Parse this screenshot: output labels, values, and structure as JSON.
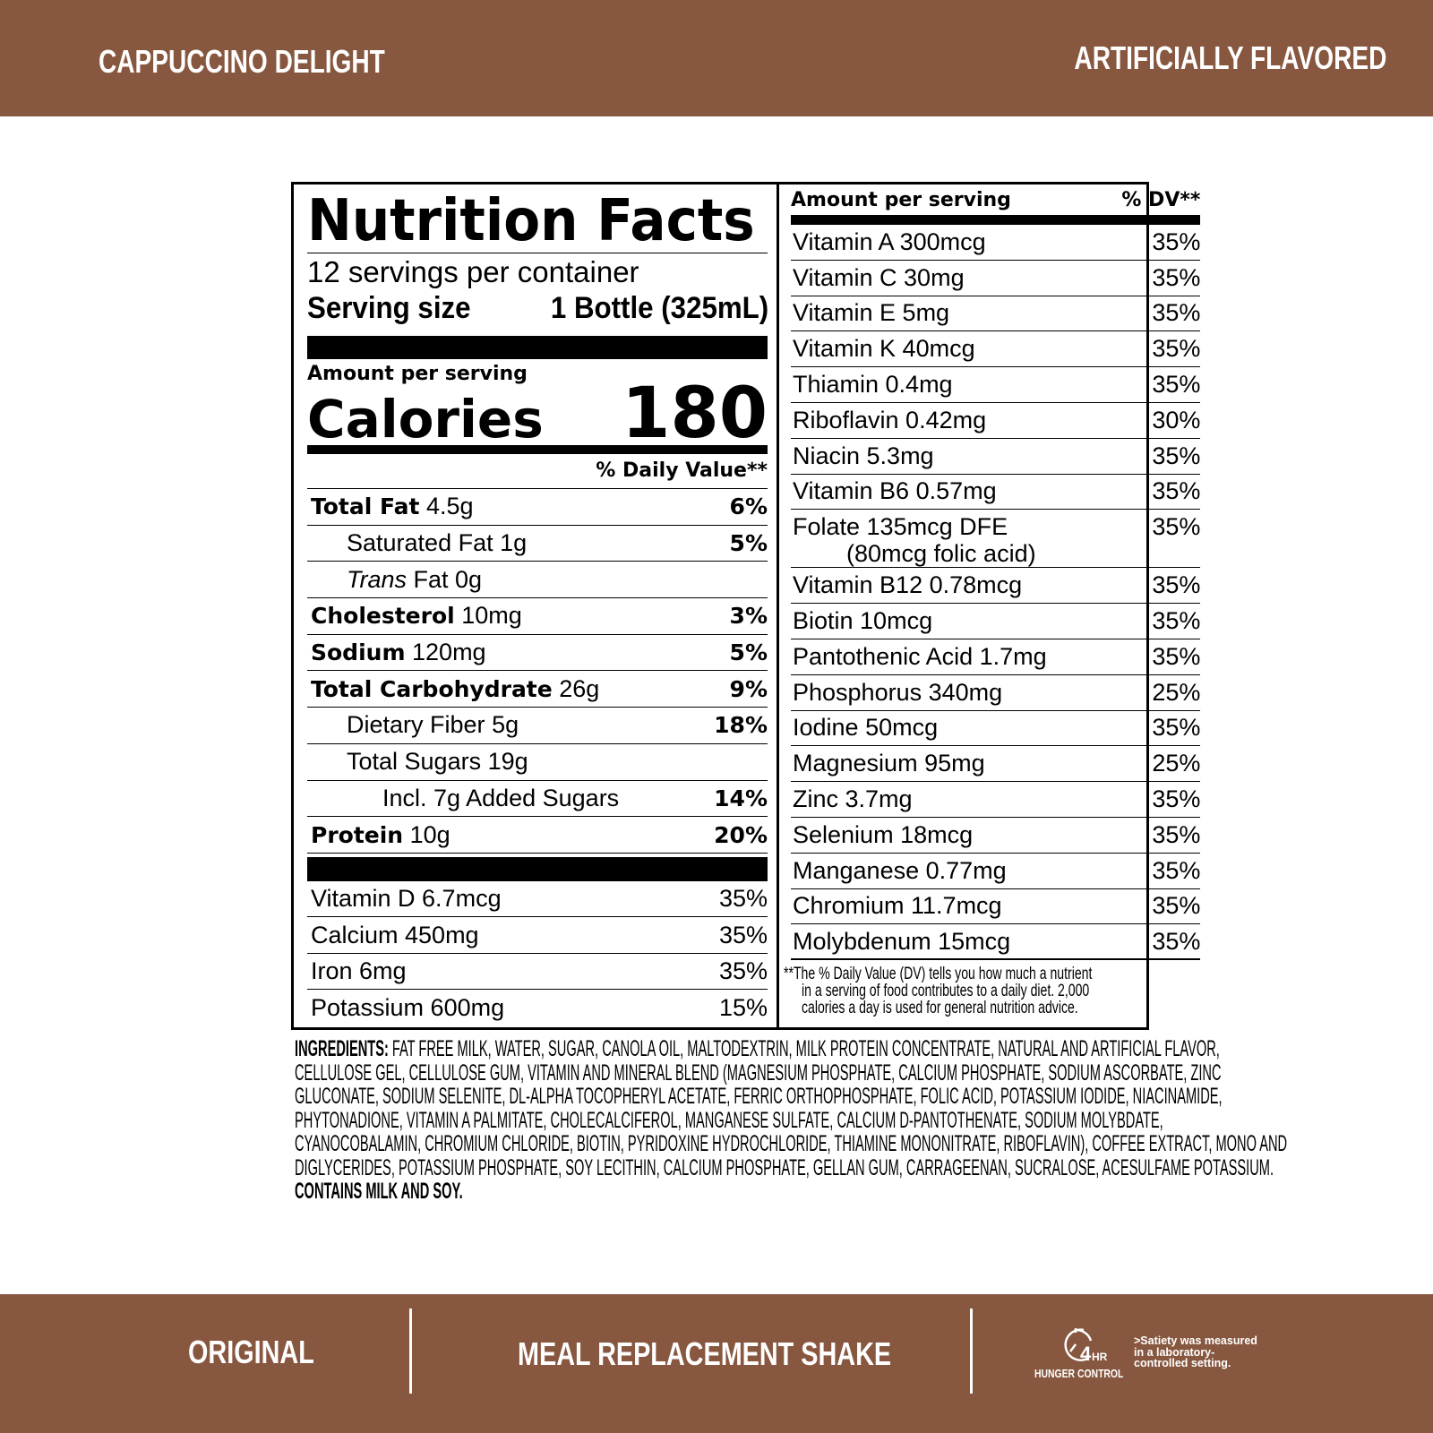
{
  "header": {
    "flavor": "CAPPUCCINO DELIGHT",
    "flavor_note": "ARTIFICIALLY FLAVORED"
  },
  "label": {
    "title": "Nutrition Facts",
    "servings": "12 servings per container",
    "serving_size_label": "Serving size",
    "serving_size_value": "1 Bottle (325mL)",
    "amount_per_serving": "Amount per serving",
    "calories_label": "Calories",
    "calories_value": "180",
    "dv_header": "% Daily Value**",
    "nutrients": [
      {
        "name": "Total Fat",
        "amount": "4.5g",
        "dv": "6%",
        "bold": true,
        "indent": 0
      },
      {
        "name": "Saturated Fat",
        "amount": "1g",
        "dv": "5%",
        "bold": false,
        "indent": 1
      },
      {
        "name": "Trans",
        "amount": "Fat 0g",
        "dv": "",
        "bold": false,
        "indent": 1,
        "italic": true
      },
      {
        "name": "Cholesterol",
        "amount": "10mg",
        "dv": "3%",
        "bold": true,
        "indent": 0
      },
      {
        "name": "Sodium",
        "amount": "120mg",
        "dv": "5%",
        "bold": true,
        "indent": 0
      },
      {
        "name": "Total Carbohydrate",
        "amount": "26g",
        "dv": "9%",
        "bold": true,
        "indent": 0
      },
      {
        "name": "Dietary Fiber",
        "amount": "5g",
        "dv": "18%",
        "bold": false,
        "indent": 1
      },
      {
        "name": "Total Sugars",
        "amount": "19g",
        "dv": "",
        "bold": false,
        "indent": 1
      },
      {
        "name": "Incl. 7g Added Sugars",
        "amount": "",
        "dv": "14%",
        "bold": false,
        "indent": 2
      },
      {
        "name": "Protein",
        "amount": "10g",
        "dv": "20%",
        "bold": true,
        "indent": 0
      }
    ],
    "vitamins_left": [
      {
        "name": "Vitamin D 6.7mcg",
        "dv": "35%"
      },
      {
        "name": "Calcium 450mg",
        "dv": "35%"
      },
      {
        "name": "Iron 6mg",
        "dv": "35%"
      },
      {
        "name": "Potassium 600mg",
        "dv": "15%"
      }
    ],
    "right_header": {
      "amount": "Amount per serving",
      "dv": "% DV**"
    },
    "vitamins_right": [
      {
        "name": "Vitamin A 300mcg",
        "dv": "35%"
      },
      {
        "name": "Vitamin C 30mg",
        "dv": "35%"
      },
      {
        "name": "Vitamin E 5mg",
        "dv": "35%"
      },
      {
        "name": "Vitamin K 40mcg",
        "dv": "35%"
      },
      {
        "name": "Thiamin 0.4mg",
        "dv": "35%"
      },
      {
        "name": "Riboflavin 0.42mg",
        "dv": "30%"
      },
      {
        "name": "Niacin 5.3mg",
        "dv": "35%"
      },
      {
        "name": "Vitamin B6 0.57mg",
        "dv": "35%"
      },
      {
        "name": "Folate 135mcg DFE",
        "sub": "(80mcg folic acid)",
        "dv": "35%"
      },
      {
        "name": "Vitamin B12 0.78mcg",
        "dv": "35%"
      },
      {
        "name": "Biotin 10mcg",
        "dv": "35%"
      },
      {
        "name": "Pantothenic Acid 1.7mg",
        "dv": "35%"
      },
      {
        "name": "Phosphorus 340mg",
        "dv": "25%"
      },
      {
        "name": "Iodine 50mcg",
        "dv": "35%"
      },
      {
        "name": "Magnesium 95mg",
        "dv": "25%"
      },
      {
        "name": "Zinc 3.7mg",
        "dv": "35%"
      },
      {
        "name": "Selenium 18mcg",
        "dv": "35%"
      },
      {
        "name": "Manganese 0.77mg",
        "dv": "35%"
      },
      {
        "name": "Chromium 11.7mcg",
        "dv": "35%"
      },
      {
        "name": "Molybdenum 15mcg",
        "dv": "35%"
      }
    ],
    "footnote": [
      "**The % Daily Value (DV) tells you how much a nutrient",
      "in a serving of food contributes to a daily diet. 2,000",
      "calories a day is used for general nutrition advice."
    ]
  },
  "ingredients": {
    "label": "INGREDIENTS:",
    "lines": [
      " FAT FREE MILK, WATER, SUGAR, CANOLA OIL, MALTODEXTRIN, MILK PROTEIN CONCENTRATE, NATURAL AND ARTIFICIAL FLAVOR,",
      "CELLULOSE GEL, CELLULOSE GUM,  VITAMIN AND MINERAL BLEND (MAGNESIUM PHOSPHATE, CALCIUM PHOSPHATE, SODIUM ASCORBATE, ZINC",
      "GLUCONATE, SODIUM SELENITE, DL-ALPHA TOCOPHERYL ACETATE, FERRIC ORTHOPHOSPHATE, FOLIC ACID, POTASSIUM IODIDE, NIACINAMIDE,",
      "PHYTONADIONE, VITAMIN A PALMITATE, CHOLECALCIFEROL, MANGANESE SULFATE, CALCIUM D-PANTOTHENATE, SODIUM MOLYBDATE,",
      "CYANOCOBALAMIN, CHROMIUM CHLORIDE, BIOTIN, PYRIDOXINE HYDROCHLORIDE, THIAMINE MONONITRATE, RIBOFLAVIN), COFFEE EXTRACT, MONO AND",
      "DIGLYCERIDES, POTASSIUM PHOSPHATE, SOY LECITHIN, CALCIUM PHOSPHATE, GELLAN GUM, CARRAGEENAN, SUCRALOSE, ACESULFAME POTASSIUM."
    ],
    "allergens": "CONTAINS MILK AND SOY."
  },
  "footer": {
    "variant": "ORIGINAL",
    "product": "MEAL REPLACEMENT SHAKE",
    "badge_icon": "clock-icon",
    "badge_number": "4",
    "badge_unit": "HR",
    "badge_label": "HUNGER CONTROL",
    "disclaimer": ">Satiety was measured in a laboratory-controlled setting."
  },
  "colors": {
    "brand": "#87573f"
  }
}
